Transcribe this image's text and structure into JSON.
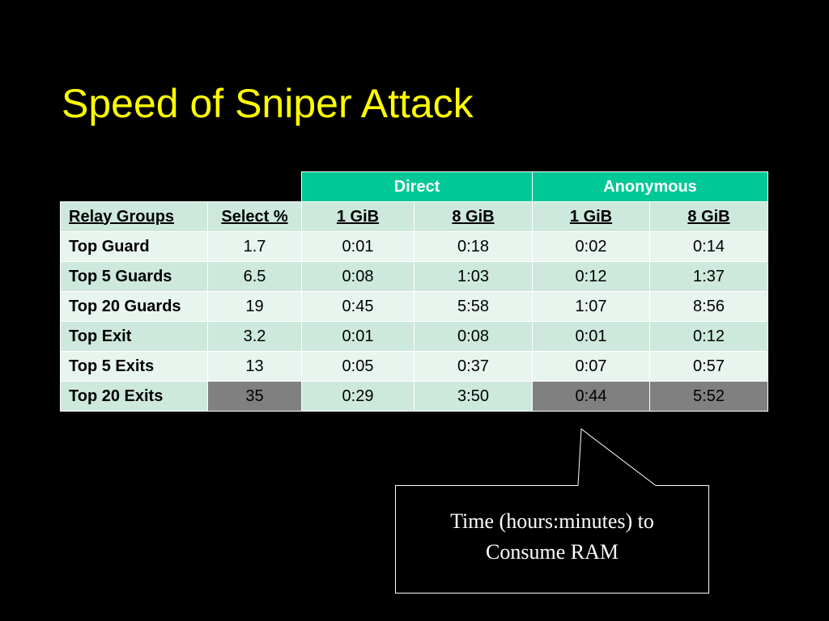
{
  "title": "Speed of Sniper Attack",
  "table": {
    "group_headers": {
      "direct": "Direct",
      "anonymous": "Anonymous"
    },
    "column_headers": [
      "Relay Groups",
      "Select %",
      "1 GiB",
      "8 GiB",
      "1 GiB",
      "8 GiB"
    ],
    "rows": [
      [
        "Top Guard",
        "1.7",
        "0:01",
        "0:18",
        "0:02",
        "0:14"
      ],
      [
        "Top 5 Guards",
        "6.5",
        "0:08",
        "1:03",
        "0:12",
        "1:37"
      ],
      [
        "Top 20 Guards",
        "19",
        "0:45",
        "5:58",
        "1:07",
        "8:56"
      ],
      [
        "Top Exit",
        "3.2",
        "0:01",
        "0:08",
        "0:01",
        "0:12"
      ],
      [
        "Top 5 Exits",
        "13",
        "0:05",
        "0:37",
        "0:07",
        "0:57"
      ],
      [
        "Top 20 Exits",
        "35",
        "0:29",
        "3:50",
        "0:44",
        "5:52"
      ]
    ],
    "colors": {
      "group_header": "#00c896",
      "row_dark": "#cde8dc",
      "row_light": "#e8f5ef",
      "highlight": "#808080"
    }
  },
  "callout": {
    "line1": "Time (hours:minutes) to",
    "line2": "Consume RAM"
  }
}
